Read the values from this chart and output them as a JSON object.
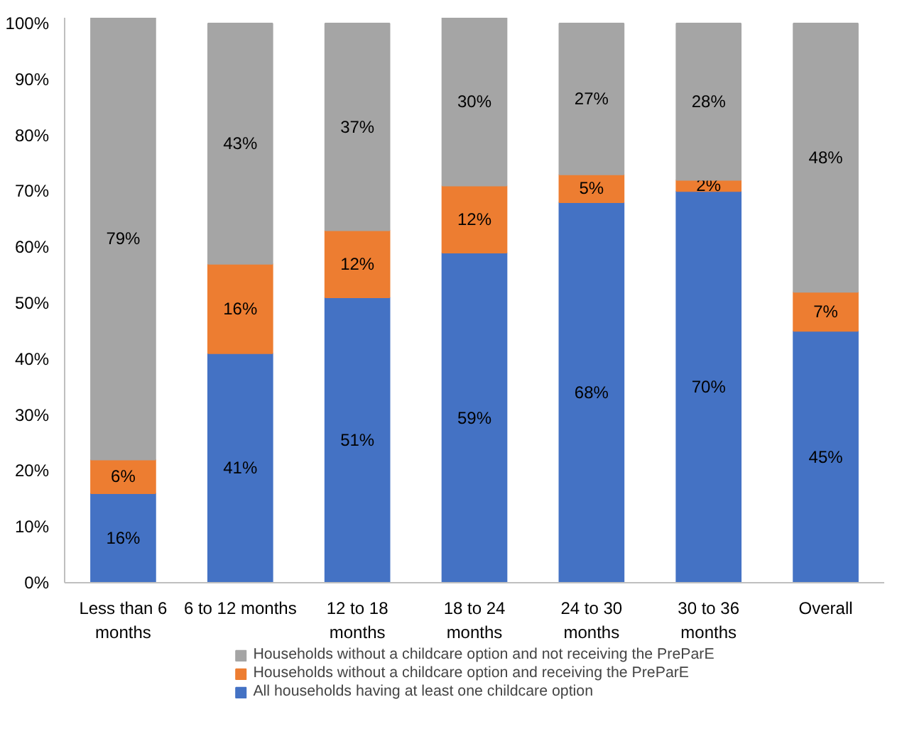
{
  "chart_data": {
    "type": "bar",
    "stacked": true,
    "categories": [
      "Less than 6 months",
      "6 to 12 months",
      "12 to 18 months",
      "18 to 24 months",
      "24 to 30 months",
      "30 to 36 months",
      "Overall"
    ],
    "series": [
      {
        "name": "All households having at least one childcare option",
        "color": "#4472c4",
        "values": [
          16,
          41,
          51,
          59,
          68,
          70,
          45
        ],
        "value_labels": [
          "16%",
          "41%",
          "51%",
          "59%",
          "68%",
          "70%",
          "45%"
        ]
      },
      {
        "name": "Households without a childcare option and receiving the PreParE",
        "color": "#ed7d31",
        "values": [
          6,
          16,
          12,
          12,
          5,
          2,
          7
        ],
        "value_labels": [
          "6%",
          "16%",
          "12%",
          "12%",
          "5%",
          "2%",
          "7%"
        ]
      },
      {
        "name": "Households without a childcare option and not receiving the PreParE",
        "color": "#a5a5a5",
        "values": [
          79,
          43,
          37,
          30,
          27,
          28,
          48
        ],
        "value_labels": [
          "79%",
          "43%",
          "37%",
          "30%",
          "27%",
          "28%",
          "48%"
        ]
      }
    ],
    "ylim": [
      0,
      101
    ],
    "yticks": [
      {
        "value": 0,
        "label": "0%"
      },
      {
        "value": 10,
        "label": "10%"
      },
      {
        "value": 20,
        "label": "20%"
      },
      {
        "value": 30,
        "label": "30%"
      },
      {
        "value": 40,
        "label": "40%"
      },
      {
        "value": 50,
        "label": "50%"
      },
      {
        "value": 60,
        "label": "60%"
      },
      {
        "value": 70,
        "label": "70%"
      },
      {
        "value": 80,
        "label": "80%"
      },
      {
        "value": 90,
        "label": "90%"
      },
      {
        "value": 100,
        "label": "100%"
      }
    ],
    "legend": "bottom"
  }
}
